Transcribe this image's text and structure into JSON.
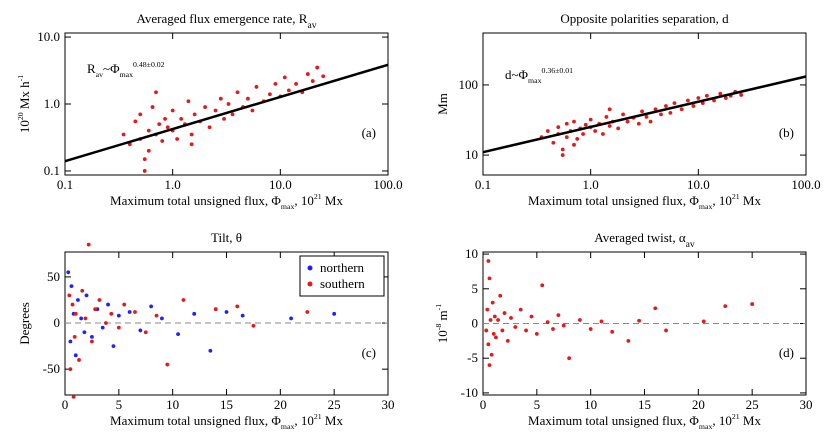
{
  "chart_data": [
    {
      "type": "scatter",
      "panel_label": "(a)",
      "title": [
        {
          "text": "Averaged flux emergence rate, R"
        },
        {
          "text": "av",
          "shift": "sub"
        }
      ],
      "xlabel": [
        {
          "text": "Maximum total unsigned flux, Φ"
        },
        {
          "text": "max",
          "shift": "sub"
        },
        {
          "text": ", 10"
        },
        {
          "text": "21",
          "shift": "sup"
        },
        {
          "text": " Mx"
        }
      ],
      "ylabel": [
        {
          "text": "10"
        },
        {
          "text": "20",
          "shift": "sup"
        },
        {
          "text": " Mx h"
        },
        {
          "text": "-1",
          "shift": "sup"
        }
      ],
      "annotation": [
        {
          "text": "R"
        },
        {
          "text": "av",
          "shift": "sub"
        },
        {
          "text": "~Φ"
        },
        {
          "text": "max",
          "shift": "sub"
        },
        {
          "text": "0.48±0.02",
          "shift": "sup"
        }
      ],
      "xscale": "log",
      "yscale": "log",
      "xlim": [
        0.1,
        100
      ],
      "ylim": [
        0.087,
        11.5
      ],
      "xticks": [
        0.1,
        {
          "value": 1,
          "label": "1.0"
        },
        {
          "value": 10,
          "label": "10.0"
        },
        {
          "value": 100,
          "label": "100.0"
        }
      ],
      "yticks": [
        0.1,
        {
          "value": 1,
          "label": "1.0"
        },
        {
          "value": 10,
          "label": "10.0"
        }
      ],
      "fit": {
        "color": "#000000",
        "x": [
          0.1,
          100
        ],
        "y": [
          0.14,
          3.85
        ]
      },
      "series": [
        {
          "color": "#e31a1c",
          "x": [
            0.35,
            0.4,
            0.45,
            0.5,
            0.5,
            0.55,
            0.6,
            0.6,
            0.65,
            0.7,
            0.75,
            0.8,
            0.85,
            0.9,
            1.0,
            1.0,
            1.1,
            1.2,
            1.3,
            1.4,
            1.5,
            1.6,
            1.8,
            2.0,
            2.2,
            2.5,
            2.8,
            3.0,
            3.3,
            3.6,
            4.0,
            4.5,
            5.0,
            5.5,
            6.0,
            7.0,
            8.0,
            9.0,
            10,
            11,
            12,
            14,
            16,
            18,
            20,
            22,
            25,
            0.55,
            0.7,
            1.5
          ],
          "y": [
            0.35,
            0.25,
            0.55,
            0.3,
            0.7,
            0.15,
            0.4,
            0.2,
            0.9,
            0.35,
            0.5,
            0.28,
            0.6,
            0.45,
            0.4,
            0.8,
            0.3,
            0.6,
            0.5,
            1.1,
            0.35,
            0.7,
            0.55,
            0.9,
            0.45,
            0.8,
            1.2,
            0.6,
            1.0,
            0.7,
            1.5,
            0.9,
            1.2,
            0.8,
            1.8,
            1.1,
            1.4,
            2.0,
            1.3,
            2.5,
            1.6,
            2.0,
            1.5,
            2.8,
            2.2,
            3.5,
            2.6,
            0.1,
            1.5,
            0.25
          ]
        }
      ]
    },
    {
      "type": "scatter",
      "panel_label": "(b)",
      "title": [
        {
          "text": "Opposite polarities separation, d"
        }
      ],
      "xlabel": [
        {
          "text": "Maximum total unsigned flux, Φ"
        },
        {
          "text": "max",
          "shift": "sub"
        },
        {
          "text": ", 10"
        },
        {
          "text": "21",
          "shift": "sup"
        },
        {
          "text": " Mx"
        }
      ],
      "ylabel": [
        {
          "text": "Mm"
        }
      ],
      "annotation": [
        {
          "text": "d~Φ"
        },
        {
          "text": "max",
          "shift": "sub"
        },
        {
          "text": "0.36±0.01",
          "shift": "sup"
        }
      ],
      "xscale": "log",
      "yscale": "log",
      "xlim": [
        0.1,
        100
      ],
      "ylim": [
        5.2,
        550
      ],
      "xticks": [
        0.1,
        {
          "value": 1,
          "label": "1.0"
        },
        {
          "value": 10,
          "label": "10.0"
        },
        {
          "value": 100,
          "label": "100.0"
        }
      ],
      "yticks": [
        10,
        100
      ],
      "fit": {
        "color": "#000000",
        "x": [
          0.1,
          100
        ],
        "y": [
          11,
          132
        ]
      },
      "series": [
        {
          "color": "#e31a1c",
          "x": [
            0.35,
            0.4,
            0.45,
            0.5,
            0.5,
            0.55,
            0.6,
            0.6,
            0.65,
            0.7,
            0.75,
            0.8,
            0.85,
            0.9,
            1.0,
            1.0,
            1.1,
            1.2,
            1.3,
            1.4,
            1.5,
            1.6,
            1.8,
            2.0,
            2.2,
            2.5,
            2.8,
            3.0,
            3.3,
            3.6,
            4.0,
            4.5,
            5.0,
            5.5,
            6.0,
            7.0,
            8.0,
            9.0,
            10,
            11,
            12,
            14,
            16,
            18,
            20,
            22,
            25,
            0.55,
            0.7,
            1.5
          ],
          "y": [
            18,
            22,
            15,
            25,
            20,
            12,
            28,
            18,
            22,
            30,
            17,
            24,
            20,
            27,
            25,
            32,
            22,
            28,
            20,
            35,
            26,
            30,
            24,
            38,
            30,
            34,
            28,
            42,
            35,
            30,
            45,
            38,
            50,
            40,
            55,
            45,
            60,
            50,
            65,
            55,
            70,
            60,
            75,
            65,
            70,
            80,
            72,
            10,
            14,
            45
          ]
        }
      ]
    },
    {
      "type": "scatter",
      "panel_label": "(c)",
      "title": [
        {
          "text": "Tilt, θ"
        }
      ],
      "xlabel": [
        {
          "text": "Maximum total unsigned flux, Φ"
        },
        {
          "text": "max",
          "shift": "sub"
        },
        {
          "text": ", 10"
        },
        {
          "text": "21",
          "shift": "sup"
        },
        {
          "text": " Mx"
        }
      ],
      "ylabel": [
        {
          "text": "Degrees"
        }
      ],
      "xscale": "linear",
      "yscale": "linear",
      "xlim": [
        0,
        30
      ],
      "ylim": [
        -78,
        77
      ],
      "xticks": [
        0,
        5,
        10,
        15,
        20,
        25,
        30
      ],
      "yticks": [
        -50,
        0,
        50
      ],
      "reference_line": {
        "y": 0,
        "style": "dashed"
      },
      "legend": "upper right",
      "series": [
        {
          "name": "northern",
          "color": "#1f1fff",
          "x": [
            0.3,
            0.5,
            0.6,
            0.8,
            1.0,
            1.2,
            1.5,
            1.8,
            2.0,
            2.5,
            3.0,
            3.5,
            4.0,
            4.5,
            5.0,
            6.0,
            7.0,
            8.0,
            9.0,
            10.5,
            12.0,
            13.5,
            15.0,
            16.5,
            21.0,
            25.0
          ],
          "y": [
            55,
            -20,
            40,
            10,
            -35,
            25,
            5,
            -10,
            30,
            -15,
            15,
            -5,
            20,
            -25,
            8,
            12,
            -8,
            18,
            5,
            -12,
            10,
            -30,
            12,
            8,
            5,
            10
          ]
        },
        {
          "name": "southern",
          "color": "#e31a1c",
          "x": [
            0.4,
            0.5,
            0.7,
            0.9,
            1.0,
            1.3,
            1.6,
            1.9,
            2.2,
            2.5,
            2.8,
            3.2,
            3.8,
            4.3,
            5.0,
            5.5,
            6.5,
            7.5,
            8.5,
            9.5,
            11.0,
            14.0,
            16.0,
            17.5,
            22.5,
            0.8
          ],
          "y": [
            30,
            -50,
            20,
            -15,
            10,
            -40,
            35,
            5,
            85,
            -20,
            15,
            25,
            0,
            10,
            -5,
            20,
            12,
            -10,
            8,
            -45,
            25,
            15,
            18,
            -3,
            12,
            -80
          ]
        }
      ]
    },
    {
      "type": "scatter",
      "panel_label": "(d)",
      "title": [
        {
          "text": "Averaged twist, α"
        },
        {
          "text": "av",
          "shift": "sub"
        }
      ],
      "xlabel": [
        {
          "text": "Maximum total unsigned flux, Φ"
        },
        {
          "text": "max",
          "shift": "sub"
        },
        {
          "text": ", 10"
        },
        {
          "text": "21",
          "shift": "sup"
        },
        {
          "text": " Mx"
        }
      ],
      "ylabel": [
        {
          "text": "10"
        },
        {
          "text": "-8",
          "shift": "sup"
        },
        {
          "text": " m"
        },
        {
          "text": "-1",
          "shift": "sup"
        }
      ],
      "xscale": "linear",
      "yscale": "linear",
      "xlim": [
        0,
        30
      ],
      "ylim": [
        -10.3,
        10.3
      ],
      "xticks": [
        0,
        5,
        10,
        15,
        20,
        25,
        30
      ],
      "yticks": [
        -10,
        -5,
        0,
        5,
        10
      ],
      "reference_line": {
        "y": 0,
        "style": "dashed"
      },
      "series": [
        {
          "color": "#e31a1c",
          "x": [
            0.3,
            0.4,
            0.5,
            0.5,
            0.6,
            0.7,
            0.8,
            0.9,
            1.0,
            1.1,
            1.2,
            1.4,
            1.6,
            1.8,
            2.0,
            2.3,
            2.6,
            3.0,
            3.5,
            4.0,
            4.5,
            5.0,
            5.5,
            6.0,
            6.5,
            7.0,
            7.5,
            8.0,
            9.0,
            10.0,
            11.0,
            12.0,
            13.5,
            14.5,
            16.0,
            17.0,
            20.5,
            22.5,
            25.0,
            0.6
          ],
          "y": [
            -1,
            2,
            9,
            -3,
            6.5,
            0.5,
            -4.5,
            3,
            -1.5,
            1,
            -2,
            0.5,
            4,
            -1,
            1.5,
            -2.5,
            0.8,
            -0.5,
            2,
            -1,
            1,
            -1.5,
            5.5,
            0.2,
            -0.8,
            1.2,
            -0.3,
            -5,
            0.5,
            -0.8,
            0.3,
            -1.2,
            -2.5,
            0.4,
            2.2,
            -1,
            0.3,
            2.5,
            2.8,
            -6
          ]
        }
      ]
    }
  ]
}
